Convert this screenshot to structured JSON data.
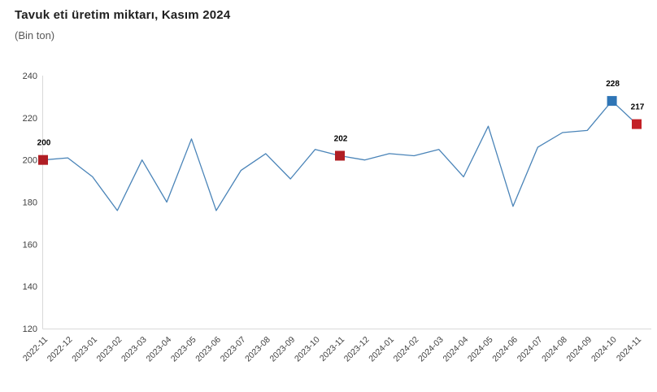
{
  "header": {
    "title": "Tavuk eti üretim miktarı, Kasım 2024",
    "subtitle": "(Bin ton)"
  },
  "chart_data": {
    "type": "line",
    "title": "Tavuk eti üretim miktarı, Kasım 2024",
    "ylabel": "Bin ton",
    "xlabel": "",
    "grid": false,
    "legend": "none",
    "ylim": [
      120,
      240
    ],
    "yticks": [
      120,
      140,
      160,
      180,
      200,
      220,
      240
    ],
    "categories": [
      "2022-11",
      "2022-12",
      "2023-01",
      "2023-02",
      "2023-03",
      "2023-04",
      "2023-05",
      "2023-06",
      "2023-07",
      "2023-08",
      "2023-09",
      "2023-10",
      "2023-11",
      "2023-12",
      "2024-01",
      "2024-02",
      "2024-03",
      "2024-04",
      "2024-05",
      "2024-06",
      "2024-07",
      "2024-08",
      "2024-09",
      "2024-10",
      "2024-11"
    ],
    "values": [
      200,
      201,
      192,
      176,
      200,
      180,
      210,
      176,
      195,
      203,
      191,
      205,
      202,
      200,
      203,
      202,
      205,
      192,
      216,
      178,
      206,
      213,
      214,
      228,
      217
    ],
    "annotated_points": [
      {
        "category": "2022-11",
        "value": 200,
        "label": "200",
        "marker_color": "#b01e24"
      },
      {
        "category": "2023-11",
        "value": 202,
        "label": "202",
        "marker_color": "#b01e24"
      },
      {
        "category": "2024-10",
        "value": 228,
        "label": "228",
        "marker_color": "#2e75b6"
      },
      {
        "category": "2024-11",
        "value": 217,
        "label": "217",
        "marker_color": "#c32026"
      }
    ],
    "colors": {
      "line": "#4a84b8",
      "axis": "#d9d9d9",
      "tick_text": "#404040",
      "annotation_text": "#000000"
    }
  }
}
